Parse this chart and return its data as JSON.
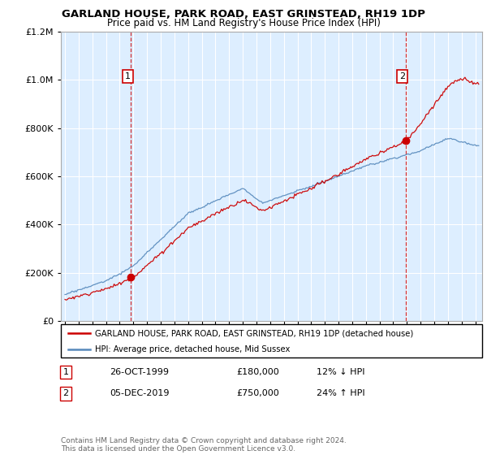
{
  "title": "GARLAND HOUSE, PARK ROAD, EAST GRINSTEAD, RH19 1DP",
  "subtitle": "Price paid vs. HM Land Registry's House Price Index (HPI)",
  "legend_entry1": "GARLAND HOUSE, PARK ROAD, EAST GRINSTEAD, RH19 1DP (detached house)",
  "legend_entry2": "HPI: Average price, detached house, Mid Sussex",
  "transaction1_label": "1",
  "transaction1_date": "26-OCT-1999",
  "transaction1_price": "£180,000",
  "transaction1_hpi": "12% ↓ HPI",
  "transaction2_label": "2",
  "transaction2_date": "05-DEC-2019",
  "transaction2_price": "£750,000",
  "transaction2_hpi": "24% ↑ HPI",
  "footer": "Contains HM Land Registry data © Crown copyright and database right 2024.\nThis data is licensed under the Open Government Licence v3.0.",
  "red_color": "#cc0000",
  "blue_color": "#5588bb",
  "bg_color": "#ddeeff",
  "ylim_max": 1200000,
  "transaction1_year": 1999.83,
  "transaction1_value": 180000,
  "transaction2_year": 2019.92,
  "transaction2_value": 750000
}
